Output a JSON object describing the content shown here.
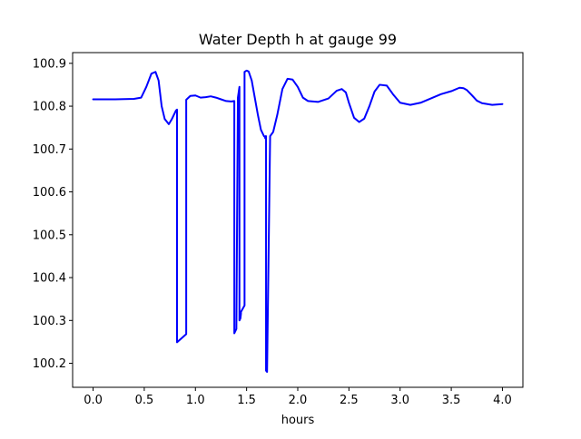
{
  "chart_data": {
    "type": "line",
    "title": "Water Depth h at gauge 99",
    "xlabel": "hours",
    "ylabel": "",
    "xlim": [
      -0.2,
      4.2
    ],
    "ylim": [
      100.144,
      100.925
    ],
    "xticks": [
      0.0,
      0.5,
      1.0,
      1.5,
      2.0,
      2.5,
      3.0,
      3.5,
      4.0
    ],
    "xtick_labels": [
      "0.0",
      "0.5",
      "1.0",
      "1.5",
      "2.0",
      "2.5",
      "3.0",
      "3.5",
      "4.0"
    ],
    "yticks": [
      100.2,
      100.3,
      100.4,
      100.5,
      100.6,
      100.7,
      100.8,
      100.9
    ],
    "ytick_labels": [
      "100.2",
      "100.3",
      "100.4",
      "100.5",
      "100.6",
      "100.7",
      "100.8",
      "100.9"
    ],
    "grid": false,
    "legend": "none",
    "series": [
      {
        "color": "#0000ff",
        "x": [
          0.0,
          0.2,
          0.4,
          0.47,
          0.52,
          0.57,
          0.61,
          0.64,
          0.67,
          0.7,
          0.74,
          0.77,
          0.81,
          0.82,
          0.82,
          0.91,
          0.91,
          0.95,
          1.0,
          1.05,
          1.1,
          1.15,
          1.2,
          1.25,
          1.3,
          1.35,
          1.38,
          1.38,
          1.4,
          1.415,
          1.415,
          1.43,
          1.43,
          1.44,
          1.445,
          1.445,
          1.48,
          1.48,
          1.5,
          1.52,
          1.55,
          1.58,
          1.61,
          1.64,
          1.67,
          1.68,
          1.682,
          1.685,
          1.69,
          1.69,
          1.7,
          1.73,
          1.76,
          1.8,
          1.85,
          1.9,
          1.95,
          2.0,
          2.05,
          2.1,
          2.2,
          2.3,
          2.38,
          2.43,
          2.47,
          2.5,
          2.55,
          2.6,
          2.65,
          2.7,
          2.75,
          2.8,
          2.87,
          2.93,
          3.0,
          3.1,
          3.2,
          3.3,
          3.4,
          3.5,
          3.58,
          3.62,
          3.65,
          3.7,
          3.75,
          3.8,
          3.9,
          4.0
        ],
        "y": [
          100.816,
          100.816,
          100.817,
          100.82,
          100.845,
          100.876,
          100.88,
          100.86,
          100.8,
          100.77,
          100.758,
          100.77,
          100.79,
          100.792,
          100.249,
          100.268,
          100.815,
          100.824,
          100.825,
          100.82,
          100.821,
          100.823,
          100.82,
          100.816,
          100.812,
          100.811,
          100.812,
          100.27,
          100.28,
          100.815,
          100.82,
          100.845,
          100.3,
          100.305,
          100.316,
          100.32,
          100.335,
          100.88,
          100.883,
          100.881,
          100.86,
          100.82,
          100.78,
          100.745,
          100.73,
          100.728,
          100.725,
          100.73,
          100.73,
          100.183,
          100.18,
          100.73,
          100.74,
          100.78,
          100.84,
          100.864,
          100.862,
          100.845,
          100.82,
          100.812,
          100.81,
          100.818,
          100.836,
          100.84,
          100.832,
          100.808,
          100.773,
          100.763,
          100.771,
          100.8,
          100.834,
          100.85,
          100.848,
          100.828,
          100.808,
          100.803,
          100.808,
          100.818,
          100.828,
          100.835,
          100.843,
          100.842,
          100.838,
          100.826,
          100.813,
          100.807,
          100.803,
          100.805
        ]
      }
    ]
  }
}
